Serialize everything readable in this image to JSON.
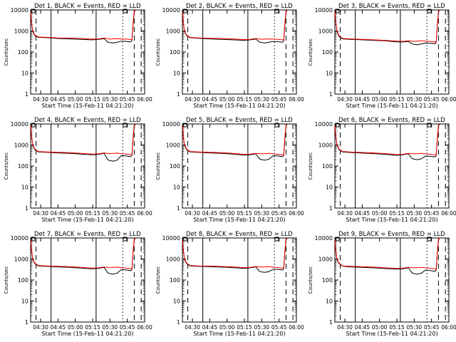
{
  "figure": {
    "ylabel": "Counts/sec",
    "xlabel": "Start Time (15-Feb-11 04:21:20)",
    "legend_text": "BLACK = Events, RED = LLD",
    "colors": {
      "events": "#000000",
      "lld": "#ff0000",
      "axes": "#000000"
    }
  },
  "chart_data": [
    {
      "type": "line",
      "title": "Det 1",
      "xlabel": "Start Time (15-Feb-11 04:21:20)",
      "ylabel": "Counts/sec",
      "scale_y": "log",
      "ylim": [
        1,
        10000
      ],
      "xlim": [
        "04:21:20",
        "06:00:00"
      ],
      "x_ticks": [
        "04:30",
        "04:45",
        "05:00",
        "05:15",
        "05:30",
        "05:45",
        "06:00"
      ],
      "y_ticks": [
        "1",
        "10",
        "100",
        "1000",
        "10000"
      ],
      "x": [
        "04:21:20",
        "04:22",
        "04:23",
        "04:25",
        "04:28",
        "04:35",
        "04:45",
        "04:55",
        "05:05",
        "05:15",
        "05:20",
        "05:25",
        "05:28",
        "05:30",
        "05:33",
        "05:36",
        "05:40",
        "05:44",
        "05:48",
        "05:49",
        "05:50",
        "05:51",
        "05:52"
      ],
      "series": [
        {
          "name": "Events",
          "values": [
            8000,
            3000,
            1000,
            600,
            500,
            480,
            440,
            420,
            400,
            380,
            400,
            430,
            300,
            280,
            270,
            290,
            330,
            320,
            300,
            350,
            2000,
            8000,
            10000
          ]
        },
        {
          "name": "LLD",
          "values": [
            8500,
            3200,
            1100,
            650,
            520,
            500,
            470,
            460,
            440,
            410,
            420,
            460,
            430,
            410,
            420,
            430,
            420,
            410,
            390,
            380,
            2500,
            8500,
            10000
          ]
        }
      ],
      "vertical_lines": {
        "solid": [
          "04:39",
          "05:18"
        ],
        "dashed": [
          "04:26",
          "05:51",
          "05:57"
        ],
        "dotted": [
          "05:41"
        ]
      }
    },
    {
      "type": "line",
      "title": "Det 2",
      "xlabel": "Start Time (15-Feb-11 04:21:20)",
      "ylabel": "Counts/sec",
      "scale_y": "log",
      "ylim": [
        1,
        10000
      ],
      "xlim": [
        "04:21:20",
        "06:00:00"
      ],
      "x_ticks": [
        "04:30",
        "04:45",
        "05:00",
        "05:15",
        "05:30",
        "05:45",
        "06:00"
      ],
      "y_ticks": [
        "1",
        "10",
        "100",
        "1000",
        "10000"
      ],
      "x": [
        "04:21:20",
        "04:22",
        "04:23",
        "04:25",
        "04:28",
        "04:35",
        "04:45",
        "04:55",
        "05:05",
        "05:15",
        "05:20",
        "05:25",
        "05:28",
        "05:30",
        "05:33",
        "05:36",
        "05:40",
        "05:44",
        "05:48",
        "05:49",
        "05:50",
        "05:51",
        "05:52"
      ],
      "series": [
        {
          "name": "Events",
          "values": [
            8000,
            3000,
            1000,
            600,
            480,
            450,
            420,
            400,
            380,
            360,
            380,
            410,
            300,
            280,
            270,
            290,
            320,
            310,
            290,
            330,
            2000,
            8000,
            10000
          ]
        },
        {
          "name": "LLD",
          "values": [
            8500,
            3200,
            1100,
            640,
            500,
            470,
            450,
            440,
            420,
            390,
            400,
            440,
            420,
            400,
            410,
            420,
            410,
            400,
            380,
            370,
            2500,
            8500,
            10000
          ]
        }
      ],
      "vertical_lines": {
        "solid": [
          "04:39",
          "05:18"
        ],
        "dashed": [
          "04:26",
          "05:51",
          "05:57"
        ],
        "dotted": [
          "05:41"
        ]
      }
    },
    {
      "type": "line",
      "title": "Det 3",
      "xlabel": "Start Time (15-Feb-11 04:21:20)",
      "ylabel": "Counts/sec",
      "scale_y": "log",
      "ylim": [
        1,
        10000
      ],
      "xlim": [
        "04:21:20",
        "06:00:00"
      ],
      "x_ticks": [
        "04:30",
        "04:45",
        "05:00",
        "05:15",
        "05:30",
        "05:45",
        "06:00"
      ],
      "y_ticks": [
        "1",
        "10",
        "100",
        "1000",
        "10000"
      ],
      "x": [
        "04:21:20",
        "04:22",
        "04:23",
        "04:25",
        "04:28",
        "04:35",
        "04:45",
        "04:55",
        "05:05",
        "05:15",
        "05:20",
        "05:25",
        "05:28",
        "05:30",
        "05:33",
        "05:36",
        "05:40",
        "05:44",
        "05:48",
        "05:49",
        "05:50",
        "05:51",
        "05:52"
      ],
      "series": [
        {
          "name": "Events",
          "values": [
            8000,
            3000,
            1000,
            550,
            420,
            400,
            380,
            360,
            340,
            300,
            300,
            320,
            250,
            230,
            220,
            240,
            270,
            260,
            250,
            280,
            1800,
            8000,
            10000
          ]
        },
        {
          "name": "LLD",
          "values": [
            8500,
            3200,
            1100,
            600,
            440,
            420,
            400,
            380,
            360,
            330,
            320,
            340,
            330,
            320,
            330,
            340,
            330,
            320,
            300,
            290,
            2200,
            8500,
            10000
          ]
        }
      ],
      "vertical_lines": {
        "solid": [
          "04:39",
          "05:18"
        ],
        "dashed": [
          "04:26",
          "05:51",
          "05:57"
        ],
        "dotted": [
          "05:41"
        ]
      }
    },
    {
      "type": "line",
      "title": "Det 4",
      "xlabel": "Start Time (15-Feb-11 04:21:20)",
      "ylabel": "Counts/sec",
      "scale_y": "log",
      "ylim": [
        1,
        10000
      ],
      "xlim": [
        "04:21:20",
        "06:00:00"
      ],
      "x_ticks": [
        "04:30",
        "04:45",
        "05:00",
        "05:15",
        "05:30",
        "05:45",
        "06:00"
      ],
      "y_ticks": [
        "1",
        "10",
        "100",
        "1000",
        "10000"
      ],
      "x": [
        "04:21:20",
        "04:22",
        "04:23",
        "04:25",
        "04:28",
        "04:35",
        "04:45",
        "04:55",
        "05:05",
        "05:15",
        "05:20",
        "05:25",
        "05:28",
        "05:30",
        "05:33",
        "05:36",
        "05:40",
        "05:44",
        "05:48",
        "05:49",
        "05:50",
        "05:51",
        "05:52"
      ],
      "series": [
        {
          "name": "Events",
          "values": [
            8000,
            3000,
            1000,
            600,
            470,
            450,
            420,
            400,
            370,
            340,
            360,
            400,
            200,
            180,
            170,
            190,
            320,
            300,
            280,
            320,
            2000,
            8000,
            10000
          ]
        },
        {
          "name": "LLD",
          "values": [
            8500,
            3200,
            1100,
            640,
            490,
            470,
            450,
            430,
            400,
            370,
            380,
            420,
            400,
            390,
            400,
            410,
            390,
            370,
            350,
            340,
            2400,
            8500,
            10000
          ]
        }
      ],
      "vertical_lines": {
        "solid": [
          "04:39",
          "05:18"
        ],
        "dashed": [
          "04:26",
          "05:51",
          "05:57"
        ],
        "dotted": [
          "05:41"
        ]
      }
    },
    {
      "type": "line",
      "title": "Det 5",
      "xlabel": "Start Time (15-Feb-11 04:21:20)",
      "ylabel": "Counts/sec",
      "scale_y": "log",
      "ylim": [
        1,
        10000
      ],
      "xlim": [
        "04:21:20",
        "06:00:00"
      ],
      "x_ticks": [
        "04:30",
        "04:45",
        "05:00",
        "05:15",
        "05:30",
        "05:45",
        "06:00"
      ],
      "y_ticks": [
        "1",
        "10",
        "100",
        "1000",
        "10000"
      ],
      "x": [
        "04:21:20",
        "04:22",
        "04:23",
        "04:25",
        "04:28",
        "04:35",
        "04:45",
        "04:55",
        "05:05",
        "05:15",
        "05:20",
        "05:25",
        "05:28",
        "05:30",
        "05:33",
        "05:36",
        "05:40",
        "05:44",
        "05:48",
        "05:49",
        "05:50",
        "05:51",
        "05:52"
      ],
      "series": [
        {
          "name": "Events",
          "values": [
            8000,
            3000,
            1000,
            600,
            470,
            450,
            420,
            400,
            370,
            330,
            340,
            380,
            220,
            200,
            190,
            210,
            310,
            300,
            280,
            320,
            2000,
            8000,
            10000
          ]
        },
        {
          "name": "LLD",
          "values": [
            8500,
            3200,
            1100,
            640,
            490,
            470,
            450,
            430,
            400,
            360,
            370,
            400,
            390,
            380,
            390,
            400,
            380,
            360,
            340,
            330,
            2400,
            8500,
            10000
          ]
        }
      ],
      "vertical_lines": {
        "solid": [
          "04:39",
          "05:18"
        ],
        "dashed": [
          "04:26",
          "05:51",
          "05:57"
        ],
        "dotted": [
          "05:41"
        ]
      }
    },
    {
      "type": "line",
      "title": "Det 6",
      "xlabel": "Start Time (15-Feb-11 04:21:20)",
      "ylabel": "Counts/sec",
      "scale_y": "log",
      "ylim": [
        1,
        10000
      ],
      "xlim": [
        "04:21:20",
        "06:00:00"
      ],
      "x_ticks": [
        "04:30",
        "04:45",
        "05:00",
        "05:15",
        "05:30",
        "05:45",
        "06:00"
      ],
      "y_ticks": [
        "1",
        "10",
        "100",
        "1000",
        "10000"
      ],
      "x": [
        "04:21:20",
        "04:22",
        "04:23",
        "04:25",
        "04:28",
        "04:35",
        "04:45",
        "04:55",
        "05:05",
        "05:15",
        "05:20",
        "05:25",
        "05:28",
        "05:30",
        "05:33",
        "05:36",
        "05:40",
        "05:44",
        "05:48",
        "05:49",
        "05:50",
        "05:51",
        "05:52"
      ],
      "series": [
        {
          "name": "Events",
          "values": [
            8000,
            3000,
            1000,
            600,
            470,
            440,
            410,
            390,
            360,
            320,
            340,
            380,
            230,
            210,
            200,
            220,
            300,
            290,
            270,
            310,
            2000,
            8000,
            10000
          ]
        },
        {
          "name": "LLD",
          "values": [
            8500,
            3200,
            1100,
            640,
            490,
            460,
            440,
            420,
            390,
            350,
            360,
            400,
            390,
            380,
            390,
            400,
            380,
            360,
            340,
            330,
            2400,
            8500,
            10000
          ]
        }
      ],
      "vertical_lines": {
        "solid": [
          "04:39",
          "05:18"
        ],
        "dashed": [
          "04:26",
          "05:51",
          "05:57"
        ],
        "dotted": [
          "05:41"
        ]
      }
    },
    {
      "type": "line",
      "title": "Det 7",
      "xlabel": "Start Time (15-Feb-11 04:21:20)",
      "ylabel": "Counts/sec",
      "scale_y": "log",
      "ylim": [
        1,
        10000
      ],
      "xlim": [
        "04:21:20",
        "06:00:00"
      ],
      "x_ticks": [
        "04:30",
        "04:45",
        "05:00",
        "05:15",
        "05:30",
        "05:45",
        "06:00"
      ],
      "y_ticks": [
        "1",
        "10",
        "100",
        "1000",
        "10000"
      ],
      "x": [
        "04:21:20",
        "04:22",
        "04:23",
        "04:25",
        "04:28",
        "04:35",
        "04:45",
        "04:55",
        "05:05",
        "05:15",
        "05:20",
        "05:25",
        "05:28",
        "05:30",
        "05:33",
        "05:36",
        "05:40",
        "05:44",
        "05:48",
        "05:49",
        "05:50",
        "05:51",
        "05:52"
      ],
      "series": [
        {
          "name": "Events",
          "values": [
            8000,
            3000,
            1000,
            600,
            470,
            450,
            420,
            400,
            370,
            340,
            360,
            400,
            220,
            200,
            190,
            210,
            320,
            300,
            280,
            320,
            2000,
            8000,
            10000
          ]
        },
        {
          "name": "LLD",
          "values": [
            8500,
            3200,
            1100,
            640,
            490,
            470,
            450,
            430,
            400,
            370,
            380,
            420,
            400,
            390,
            400,
            410,
            390,
            370,
            350,
            340,
            2400,
            8500,
            10000
          ]
        }
      ],
      "vertical_lines": {
        "solid": [
          "04:39",
          "05:18"
        ],
        "dashed": [
          "04:26",
          "05:51",
          "05:57"
        ],
        "dotted": [
          "05:41"
        ]
      }
    },
    {
      "type": "line",
      "title": "Det 8",
      "xlabel": "Start Time (15-Feb-11 04:21:20)",
      "ylabel": "Counts/sec",
      "scale_y": "log",
      "ylim": [
        1,
        10000
      ],
      "xlim": [
        "04:21:20",
        "06:00:00"
      ],
      "x_ticks": [
        "04:30",
        "04:45",
        "05:00",
        "05:15",
        "05:30",
        "05:45",
        "06:00"
      ],
      "y_ticks": [
        "1",
        "10",
        "100",
        "1000",
        "10000"
      ],
      "x": [
        "04:21:20",
        "04:22",
        "04:23",
        "04:25",
        "04:28",
        "04:35",
        "04:45",
        "04:55",
        "05:05",
        "05:15",
        "05:20",
        "05:25",
        "05:28",
        "05:30",
        "05:33",
        "05:36",
        "05:40",
        "05:44",
        "05:48",
        "05:49",
        "05:50",
        "05:51",
        "05:52"
      ],
      "series": [
        {
          "name": "Events",
          "values": [
            8000,
            3000,
            1000,
            600,
            470,
            450,
            430,
            410,
            390,
            360,
            380,
            420,
            260,
            240,
            230,
            250,
            330,
            320,
            300,
            340,
            2000,
            8000,
            10000
          ]
        },
        {
          "name": "LLD",
          "values": [
            8500,
            3200,
            1100,
            640,
            490,
            470,
            460,
            440,
            420,
            390,
            400,
            440,
            420,
            410,
            420,
            430,
            410,
            390,
            370,
            360,
            2400,
            8500,
            10000
          ]
        }
      ],
      "vertical_lines": {
        "solid": [
          "04:39",
          "05:18"
        ],
        "dashed": [
          "04:26",
          "05:51",
          "05:57"
        ],
        "dotted": [
          "05:41"
        ]
      }
    },
    {
      "type": "line",
      "title": "Det 9",
      "xlabel": "Start Time (15-Feb-11 04:21:20)",
      "ylabel": "Counts/sec",
      "scale_y": "log",
      "ylim": [
        1,
        10000
      ],
      "xlim": [
        "04:21:20",
        "06:00:00"
      ],
      "x_ticks": [
        "04:30",
        "04:45",
        "05:00",
        "05:15",
        "05:30",
        "05:45",
        "06:00"
      ],
      "y_ticks": [
        "1",
        "10",
        "100",
        "1000",
        "10000"
      ],
      "x": [
        "04:21:20",
        "04:22",
        "04:23",
        "04:25",
        "04:28",
        "04:35",
        "04:45",
        "04:55",
        "05:05",
        "05:15",
        "05:20",
        "05:25",
        "05:28",
        "05:30",
        "05:33",
        "05:36",
        "05:40",
        "05:44",
        "05:48",
        "05:49",
        "05:50",
        "05:51",
        "05:52"
      ],
      "series": [
        {
          "name": "Events",
          "values": [
            8000,
            3000,
            1000,
            600,
            450,
            420,
            400,
            380,
            350,
            330,
            340,
            380,
            220,
            200,
            190,
            210,
            300,
            280,
            260,
            290,
            1900,
            8000,
            10000
          ]
        },
        {
          "name": "LLD",
          "values": [
            8500,
            3200,
            1100,
            640,
            470,
            450,
            430,
            410,
            380,
            360,
            370,
            400,
            390,
            380,
            390,
            400,
            380,
            360,
            340,
            330,
            2300,
            8500,
            10000
          ]
        }
      ],
      "vertical_lines": {
        "solid": [
          "04:39",
          "05:18"
        ],
        "dashed": [
          "04:26",
          "05:51",
          "05:57"
        ],
        "dotted": [
          "05:41"
        ]
      }
    }
  ]
}
